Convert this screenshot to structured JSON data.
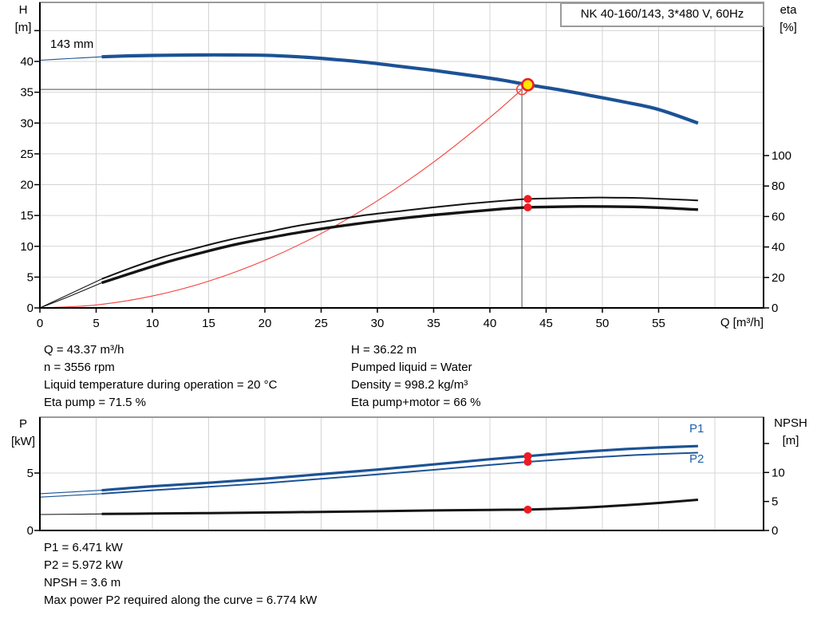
{
  "title_box": {
    "text": "NK 40-160/143, 3*480 V, 60Hz"
  },
  "axis_labels": {
    "h": "H",
    "h_unit": "[m]",
    "eta": "eta",
    "eta_unit": "[%]",
    "q": "Q [m³/h]",
    "p": "P",
    "p_unit": "[kW]",
    "npsh": "NPSH",
    "npsh_unit": "[m]"
  },
  "curve_labels": {
    "impeller": "143 mm",
    "p1": "P1",
    "p2": "P2"
  },
  "info_left": [
    "Q = 43.37 m³/h",
    "n = 3556 rpm",
    "Liquid temperature during operation = 20 °C",
    "Eta pump = 71.5 %"
  ],
  "info_right": [
    "H = 36.22 m",
    "Pumped liquid = Water",
    "Density = 998.2 kg/m³",
    "Eta pump+motor = 66 %"
  ],
  "results": [
    "P1 = 6.471 kW",
    "P2 = 5.972 kW",
    "NPSH = 3.6 m",
    "Max power P2 required along the curve = 6.774 kW"
  ],
  "colors": {
    "curve_blue": "#1c5295",
    "curve_black": "#141414",
    "system_red": "#f4413d",
    "dot_red": "#ec1c24",
    "duty_yellow": "#ffe600",
    "grid": "#d4d4d4",
    "axis": "#000000",
    "border_gray": "#9b9b9b",
    "crosshair": "#878787",
    "label_blue": "#2161ab"
  },
  "chart_data": [
    {
      "id": "qh-eta-chart",
      "type": "line",
      "title": "NK 40-160/143, 3*480 V, 60Hz",
      "xlabel": "Q [m³/h]",
      "xlim": [
        0,
        64.3
      ],
      "x_ticks": [
        0,
        5,
        10,
        15,
        20,
        25,
        30,
        35,
        40,
        45,
        50,
        55
      ],
      "y_left": {
        "label": "H [m]",
        "lim": [
          0,
          49.6
        ],
        "ticks": [
          0,
          5,
          10,
          15,
          20,
          25,
          30,
          35,
          40
        ],
        "unlabeled_ticks": [
          45
        ]
      },
      "y_right": {
        "label": "eta [%]",
        "lim": [
          0,
          200
        ],
        "ticks": [
          0,
          20,
          40,
          60,
          80,
          100
        ]
      },
      "grid": {
        "vertical_every": 5,
        "vertical_max": 60,
        "horizontal_every": 5,
        "horizontal_max": 45
      },
      "series": [
        {
          "name": "system-curve",
          "axis": "left",
          "color": "red",
          "width": 1.1,
          "points": [
            [
              0,
              0
            ],
            [
              5,
              0.48
            ],
            [
              10,
              1.93
            ],
            [
              15,
              4.34
            ],
            [
              20,
              7.72
            ],
            [
              25,
              12.07
            ],
            [
              30,
              17.38
            ],
            [
              35,
              23.66
            ],
            [
              40,
              30.9
            ],
            [
              42.85,
              35.45
            ]
          ]
        },
        {
          "name": "eta-pump-curve",
          "axis": "right",
          "color": "black",
          "width": 2,
          "thin_until": 5.5,
          "points": [
            [
              0,
              0
            ],
            [
              2.75,
              9.5
            ],
            [
              5.5,
              19
            ],
            [
              8,
              26
            ],
            [
              11,
              33.5
            ],
            [
              14,
              39.5
            ],
            [
              17,
              45
            ],
            [
              20,
              49.5
            ],
            [
              23,
              54
            ],
            [
              26,
              57.5
            ],
            [
              29,
              61
            ],
            [
              32,
              63.5
            ],
            [
              35,
              66
            ],
            [
              38,
              68.3
            ],
            [
              41,
              70.2
            ],
            [
              43.37,
              71.5
            ],
            [
              46,
              72
            ],
            [
              49,
              72.4
            ],
            [
              52,
              72.3
            ],
            [
              55,
              71.7
            ],
            [
              58.5,
              70.5
            ]
          ]
        },
        {
          "name": "eta-pump-motor-curve",
          "axis": "right",
          "color": "black",
          "width": 3.4,
          "thin_until": 5.5,
          "points": [
            [
              0,
              0
            ],
            [
              2.75,
              8
            ],
            [
              5.5,
              16.5
            ],
            [
              8,
              22.5
            ],
            [
              11,
              29.5
            ],
            [
              14,
              35.5
            ],
            [
              17,
              41
            ],
            [
              20,
              45.5
            ],
            [
              23,
              49.5
            ],
            [
              26,
              53
            ],
            [
              29,
              56
            ],
            [
              32,
              58.7
            ],
            [
              35,
              61
            ],
            [
              38,
              63
            ],
            [
              41,
              64.9
            ],
            [
              43.37,
              66
            ],
            [
              46,
              66.4
            ],
            [
              49,
              66.6
            ],
            [
              52,
              66.4
            ],
            [
              55,
              65.8
            ],
            [
              58.5,
              64.5
            ]
          ]
        },
        {
          "name": "pump-curve",
          "axis": "left",
          "color": "blue",
          "width": 4.2,
          "thin_until": 5.5,
          "label": "143 mm",
          "points": [
            [
              0,
              40.2
            ],
            [
              2.5,
              40.45
            ],
            [
              5.5,
              40.75
            ],
            [
              8,
              40.9
            ],
            [
              11,
              41.0
            ],
            [
              14,
              41.05
            ],
            [
              17,
              41.05
            ],
            [
              20,
              41.0
            ],
            [
              23,
              40.75
            ],
            [
              26,
              40.35
            ],
            [
              29,
              39.85
            ],
            [
              32,
              39.2
            ],
            [
              35,
              38.55
            ],
            [
              38,
              37.8
            ],
            [
              41,
              37.0
            ],
            [
              43.37,
              36.22
            ],
            [
              46,
              35.45
            ],
            [
              49,
              34.45
            ],
            [
              52,
              33.4
            ],
            [
              55,
              32.2
            ],
            [
              58.5,
              30.0
            ]
          ]
        }
      ],
      "markers": {
        "duty_point": {
          "q": 43.37,
          "h": 36.22
        },
        "requested_duty": {
          "q": 42.85,
          "h": 35.45
        },
        "eta_dots": [
          {
            "q": 43.37,
            "eta": 71.5
          },
          {
            "q": 43.37,
            "eta": 66
          }
        ]
      }
    },
    {
      "id": "power-npsh-chart",
      "type": "line",
      "xlabel": "",
      "xlim": [
        0,
        64.3
      ],
      "x_ticks": [],
      "y_left": {
        "label": "P [kW]",
        "lim": [
          0,
          9.9
        ],
        "ticks": [
          0,
          5
        ]
      },
      "y_right": {
        "label": "NPSH [m]",
        "lim": [
          0,
          19.5
        ],
        "ticks": [
          0,
          5,
          10
        ],
        "unlabeled_ticks": [
          15
        ]
      },
      "grid": {
        "vertical_every": 5,
        "vertical_max": 60,
        "horizontal_left_ticks": [
          5
        ]
      },
      "series": [
        {
          "name": "npsh-curve",
          "axis": "right",
          "color": "black",
          "width": 3,
          "thin_until": 5.5,
          "points": [
            [
              0,
              2.75
            ],
            [
              5.5,
              2.85
            ],
            [
              10,
              2.92
            ],
            [
              15,
              3.0
            ],
            [
              20,
              3.1
            ],
            [
              25,
              3.2
            ],
            [
              30,
              3.32
            ],
            [
              35,
              3.45
            ],
            [
              40,
              3.55
            ],
            [
              43.37,
              3.6
            ],
            [
              46,
              3.75
            ],
            [
              49,
              4.0
            ],
            [
              52,
              4.35
            ],
            [
              55,
              4.75
            ],
            [
              58.5,
              5.3
            ]
          ]
        },
        {
          "name": "p2-curve",
          "axis": "left",
          "color": "blue",
          "width": 2,
          "thin_until": 5.5,
          "label": "P2",
          "points": [
            [
              0,
              2.9
            ],
            [
              2.75,
              3.05
            ],
            [
              5.5,
              3.2
            ],
            [
              10,
              3.5
            ],
            [
              15,
              3.8
            ],
            [
              20,
              4.12
            ],
            [
              25,
              4.5
            ],
            [
              30,
              4.88
            ],
            [
              35,
              5.28
            ],
            [
              40,
              5.7
            ],
            [
              43.37,
              5.972
            ],
            [
              46,
              6.15
            ],
            [
              49,
              6.35
            ],
            [
              52,
              6.52
            ],
            [
              55,
              6.65
            ],
            [
              58.5,
              6.774
            ]
          ]
        },
        {
          "name": "p1-curve",
          "axis": "left",
          "color": "blue",
          "width": 3.2,
          "thin_until": 5.5,
          "label": "P1",
          "points": [
            [
              0,
              3.2
            ],
            [
              2.75,
              3.35
            ],
            [
              5.5,
              3.5
            ],
            [
              10,
              3.85
            ],
            [
              15,
              4.15
            ],
            [
              20,
              4.5
            ],
            [
              25,
              4.9
            ],
            [
              30,
              5.3
            ],
            [
              35,
              5.75
            ],
            [
              40,
              6.2
            ],
            [
              43.37,
              6.471
            ],
            [
              46,
              6.68
            ],
            [
              49,
              6.9
            ],
            [
              52,
              7.08
            ],
            [
              55,
              7.22
            ],
            [
              58.5,
              7.35
            ]
          ]
        }
      ],
      "markers": {
        "p_dots": [
          {
            "q": 43.37,
            "p": 6.471
          },
          {
            "q": 43.37,
            "p": 5.972
          }
        ],
        "npsh_dots": [
          {
            "q": 43.37,
            "npsh": 3.6
          }
        ]
      }
    }
  ]
}
